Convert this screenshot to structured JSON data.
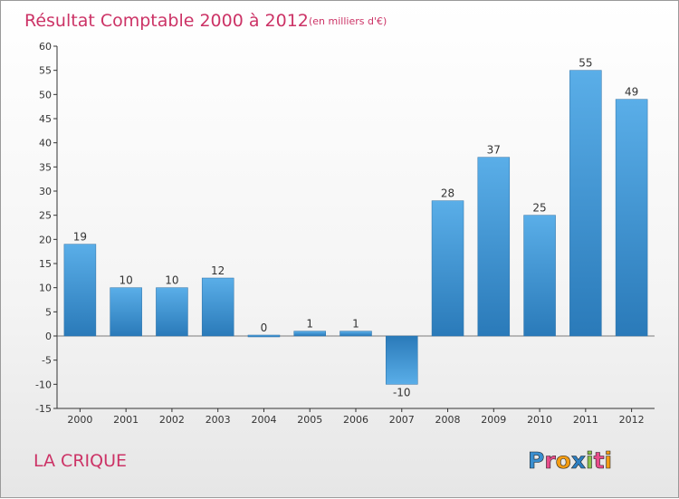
{
  "chart_data": {
    "type": "bar",
    "title": "Résultat Comptable 2000 à 2012",
    "subtitle": "(en milliers d'€)",
    "categories": [
      "2000",
      "2001",
      "2002",
      "2003",
      "2004",
      "2005",
      "2006",
      "2007",
      "2008",
      "2009",
      "2010",
      "2011",
      "2012"
    ],
    "values": [
      19,
      10,
      10,
      12,
      0,
      1,
      1,
      -10,
      28,
      37,
      25,
      55,
      49
    ],
    "data_labels": [
      "19",
      "10",
      "10",
      "12",
      "0",
      "1",
      "1",
      "-10",
      "28",
      "37",
      "25",
      "55",
      "49"
    ],
    "ylim": [
      -15,
      60
    ],
    "yticks": [
      -15,
      -10,
      -5,
      0,
      5,
      10,
      15,
      20,
      25,
      30,
      35,
      40,
      45,
      50,
      55,
      60
    ],
    "xlabel": "",
    "ylabel": "",
    "grid": false,
    "bar_color_top": "#5aaee8",
    "bar_color_bottom": "#2a7ab9"
  },
  "place_name": "LA CRIQUE",
  "brand": {
    "letters": [
      "P",
      "r",
      "o",
      "x",
      "i",
      "t",
      "i"
    ],
    "colors": [
      "#3a8fd0",
      "#e84c8b",
      "#f39c12",
      "#2c7fc2",
      "#8bc34a",
      "#e84c8b",
      "#f39c12"
    ]
  },
  "colors": {
    "title": "#cc3366",
    "place": "#cc3366",
    "axis": "#333333"
  }
}
